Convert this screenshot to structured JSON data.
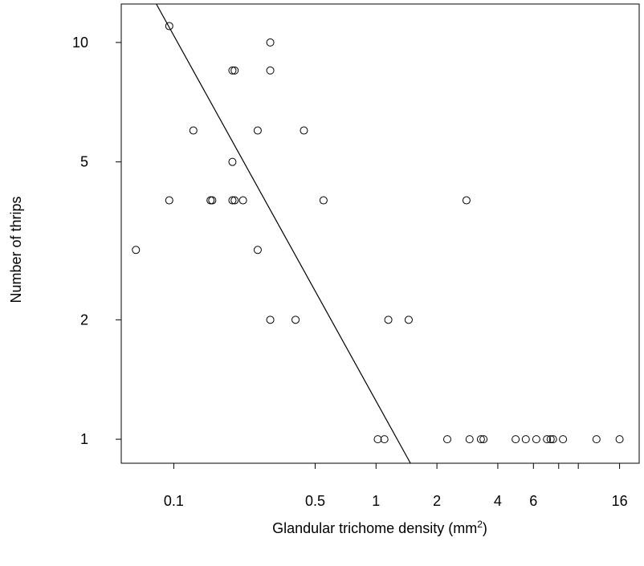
{
  "chart_data": {
    "type": "scatter",
    "title": "",
    "xlabel": "Glandular trichome density (mm",
    "xlabel_sup": "2",
    "xlabel_close": ")",
    "ylabel": "Number of thrips",
    "x_scale": "log",
    "y_scale": "log",
    "xlim": [
      0.055,
      20
    ],
    "ylim": [
      0.87,
      12.5
    ],
    "x_ticks": [
      {
        "value": 0.1,
        "label": "0.1"
      },
      {
        "value": 0.5,
        "label": "0.5"
      },
      {
        "value": 1,
        "label": "1"
      },
      {
        "value": 2,
        "label": "2"
      },
      {
        "value": 4,
        "label": "4"
      },
      {
        "value": 6,
        "label": "6"
      },
      {
        "value": 16,
        "label": "16"
      }
    ],
    "x_minor_ticks": [
      8,
      10
    ],
    "y_ticks": [
      {
        "value": 1,
        "label": "1"
      },
      {
        "value": 2,
        "label": "2"
      },
      {
        "value": 5,
        "label": "5"
      },
      {
        "value": 10,
        "label": "10"
      }
    ],
    "grid": false,
    "points": [
      {
        "x": 0.065,
        "y": 3
      },
      {
        "x": 0.095,
        "y": 11
      },
      {
        "x": 0.095,
        "y": 4
      },
      {
        "x": 0.125,
        "y": 6
      },
      {
        "x": 0.152,
        "y": 4
      },
      {
        "x": 0.155,
        "y": 4
      },
      {
        "x": 0.195,
        "y": 4
      },
      {
        "x": 0.2,
        "y": 4
      },
      {
        "x": 0.195,
        "y": 5
      },
      {
        "x": 0.195,
        "y": 8.5
      },
      {
        "x": 0.2,
        "y": 8.5
      },
      {
        "x": 0.22,
        "y": 4
      },
      {
        "x": 0.26,
        "y": 6
      },
      {
        "x": 0.26,
        "y": 3
      },
      {
        "x": 0.3,
        "y": 10
      },
      {
        "x": 0.3,
        "y": 8.5
      },
      {
        "x": 0.3,
        "y": 2
      },
      {
        "x": 0.4,
        "y": 2
      },
      {
        "x": 0.44,
        "y": 6
      },
      {
        "x": 0.55,
        "y": 4
      },
      {
        "x": 1.02,
        "y": 1
      },
      {
        "x": 1.1,
        "y": 1
      },
      {
        "x": 1.15,
        "y": 2
      },
      {
        "x": 1.45,
        "y": 2
      },
      {
        "x": 2.25,
        "y": 1
      },
      {
        "x": 2.8,
        "y": 4
      },
      {
        "x": 2.9,
        "y": 1
      },
      {
        "x": 3.3,
        "y": 1
      },
      {
        "x": 3.4,
        "y": 1
      },
      {
        "x": 4.9,
        "y": 1
      },
      {
        "x": 5.5,
        "y": 1
      },
      {
        "x": 6.2,
        "y": 1
      },
      {
        "x": 7.0,
        "y": 1
      },
      {
        "x": 7.3,
        "y": 1
      },
      {
        "x": 7.5,
        "y": 1
      },
      {
        "x": 8.4,
        "y": 1
      },
      {
        "x": 12.3,
        "y": 1
      },
      {
        "x": 16.0,
        "y": 1
      }
    ],
    "fit_line": {
      "from": {
        "x": 0.082,
        "y": 12.5
      },
      "to": {
        "x": 1.48,
        "y": 0.87
      }
    }
  }
}
